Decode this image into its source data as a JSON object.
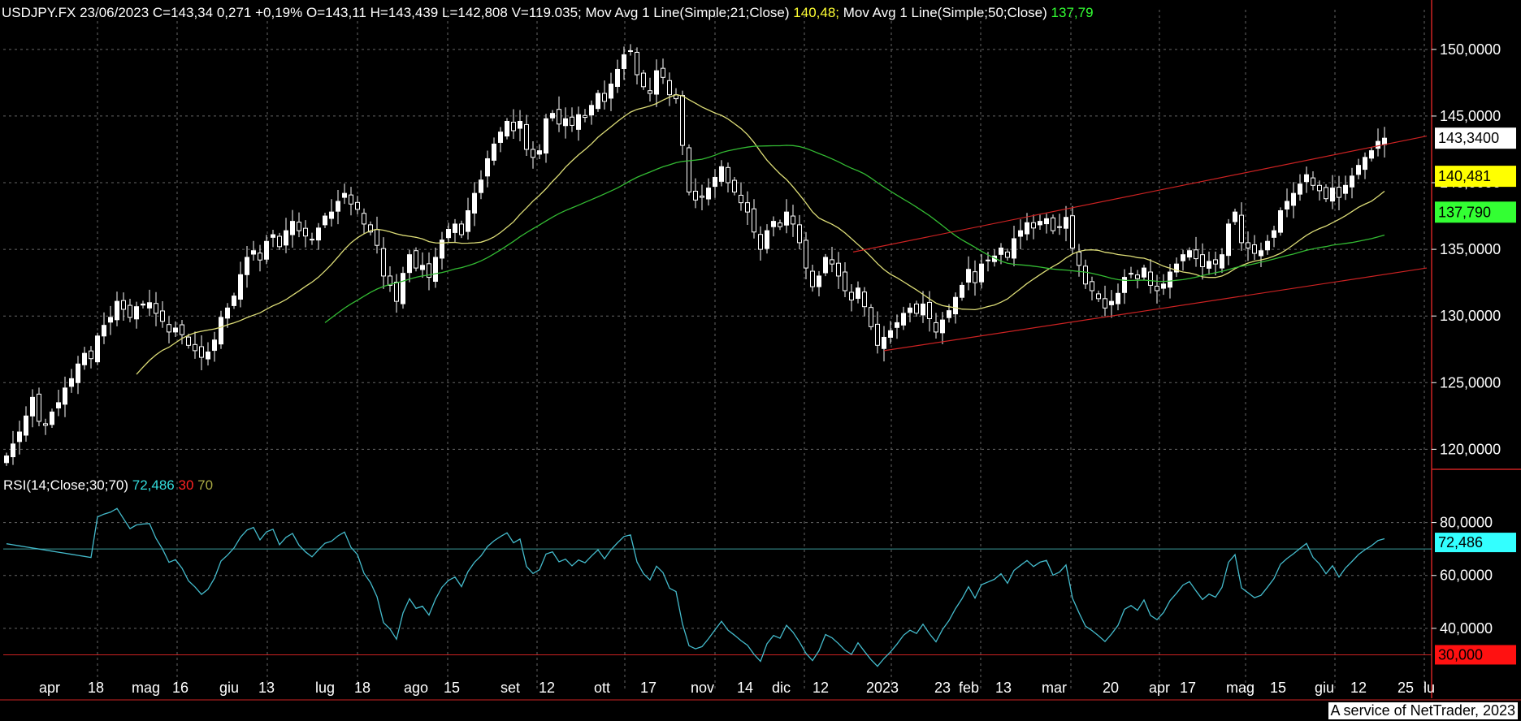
{
  "header": {
    "symbol": "USDJPY.FX",
    "date": "23/06/2023",
    "close": "C=143,34",
    "change": "0,271",
    "change_pct": "+0,19%",
    "open": "O=143,11",
    "high": "H=143,439",
    "low": "L=142,808",
    "volume": "V=119.035;",
    "ma21_label": "Mov Avg 1 Line(Simple;21;Close)",
    "ma21_value": "140,48;",
    "ma50_label": "Mov Avg 1 Line(Simple;50;Close)",
    "ma50_value": "137,79"
  },
  "rsi_header": {
    "label": "RSI(14;Close;30;70)",
    "value": "72,486",
    "low": "30",
    "high": "70"
  },
  "credit": "A service of NetTrader, 2023",
  "colors": {
    "background": "#000000",
    "ma21": "#dddd77",
    "ma50": "#33bb33",
    "trend": "#cc2222",
    "rsi": "#44bbcc",
    "grid": "#666666"
  },
  "chart_data": {
    "type": "candlestick",
    "price_panel": {
      "y_ticks": [
        "150,0000",
        "145,0000",
        "140,0000",
        "135,0000",
        "130,0000",
        "125,0000",
        "120,0000"
      ],
      "y_tick_values": [
        150,
        145,
        140,
        135,
        130,
        125,
        120
      ],
      "ylim": [
        118.5,
        152.0
      ],
      "badges": [
        {
          "label": "143,3400",
          "value": 143.34,
          "bg": "#ffffff",
          "fg": "#000000"
        },
        {
          "label": "140,481",
          "value": 140.481,
          "bg": "#ffff00",
          "fg": "#000000"
        },
        {
          "label": "137,790",
          "value": 137.79,
          "bg": "#33ff33",
          "fg": "#000000"
        }
      ],
      "candles_close": [
        119.5,
        120.4,
        121.3,
        122.5,
        123.9,
        122.1,
        121.8,
        122.8,
        123.5,
        124.6,
        125.3,
        126.4,
        127.2,
        126.8,
        128.5,
        129.3,
        129.9,
        131.1,
        130.5,
        129.9,
        130.7,
        130.9,
        131.0,
        130.2,
        129.6,
        128.8,
        129.1,
        128.6,
        127.8,
        127.4,
        126.9,
        127.3,
        128.2,
        129.9,
        130.6,
        131.5,
        133.1,
        134.4,
        134.9,
        134.2,
        135.6,
        136.1,
        135.2,
        136.4,
        137.1,
        136.4,
        136.0,
        135.7,
        136.6,
        137.5,
        137.8,
        138.6,
        139.2,
        138.4,
        138.0,
        136.9,
        136.3,
        135.3,
        133.0,
        132.3,
        131.1,
        133.2,
        134.6,
        133.6,
        133.8,
        132.9,
        134.4,
        135.7,
        136.5,
        136.9,
        136.1,
        137.9,
        139.2,
        140.2,
        141.8,
        142.9,
        143.8,
        144.6,
        143.9,
        144.6,
        142.5,
        141.9,
        142.4,
        144.8,
        145.2,
        144.4,
        144.8,
        144.3,
        145.1,
        144.9,
        145.8,
        146.7,
        146.1,
        147.4,
        148.5,
        149.6,
        149.9,
        148.1,
        147.2,
        146.7,
        148.4,
        147.9,
        146.6,
        146.3,
        142.8,
        139.3,
        138.7,
        138.9,
        139.6,
        140.4,
        141.2,
        140.0,
        139.3,
        138.5,
        137.8,
        136.3,
        135.0,
        136.4,
        137.1,
        136.7,
        137.8,
        136.9,
        135.5,
        133.6,
        132.2,
        133.0,
        134.4,
        133.9,
        133.0,
        131.9,
        131.2,
        132.1,
        130.7,
        129.2,
        127.8,
        128.4,
        128.9,
        129.5,
        130.2,
        130.6,
        130.2,
        130.9,
        129.8,
        128.8,
        129.7,
        130.4,
        131.4,
        132.3,
        133.5,
        132.5,
        133.9,
        134.2,
        134.5,
        135.1,
        134.4,
        135.8,
        136.4,
        137.0,
        136.6,
        137.1,
        137.3,
        136.4,
        136.7,
        137.4,
        135.1,
        133.8,
        132.4,
        131.9,
        131.3,
        130.6,
        131.1,
        131.7,
        132.9,
        133.2,
        132.8,
        133.6,
        132.3,
        131.9,
        132.4,
        133.3,
        133.9,
        134.6,
        134.9,
        134.3,
        133.7,
        134.1,
        133.9,
        134.6,
        136.9,
        137.8,
        135.5,
        135.1,
        134.7,
        134.9,
        135.6,
        136.4,
        137.9,
        138.6,
        139.2,
        139.9,
        140.6,
        139.8,
        139.4,
        138.8,
        139.6,
        138.9,
        139.8,
        140.5,
        141.3,
        141.9,
        142.4,
        143.1,
        143.34
      ],
      "ma21_label_value": 140.48,
      "ma50_label_value": 137.79
    },
    "rsi_panel": {
      "y_ticks": [
        "80,0000",
        "60,0000",
        "40,0000"
      ],
      "y_tick_values": [
        80,
        60,
        40
      ],
      "level_lines": [
        30,
        70
      ],
      "ylim": [
        24,
        94
      ],
      "badges": [
        {
          "label": "72,486",
          "value": 72.486,
          "bg": "#33ffff",
          "fg": "#000000"
        },
        {
          "label": "30,000",
          "value": 30.0,
          "bg": "#ff1111",
          "fg": "#000000"
        }
      ]
    },
    "x_labels": [
      "apr",
      "18",
      "mag",
      "16",
      "giu",
      "13",
      "lug",
      "18",
      "ago",
      "15",
      "set",
      "12",
      "ott",
      "17",
      "nov",
      "14",
      "dic",
      "12",
      "2023",
      "23",
      "feb",
      "13",
      "mar",
      "20",
      "apr",
      "17",
      "mag",
      "15",
      "giu",
      "12",
      "25",
      "lu"
    ]
  }
}
